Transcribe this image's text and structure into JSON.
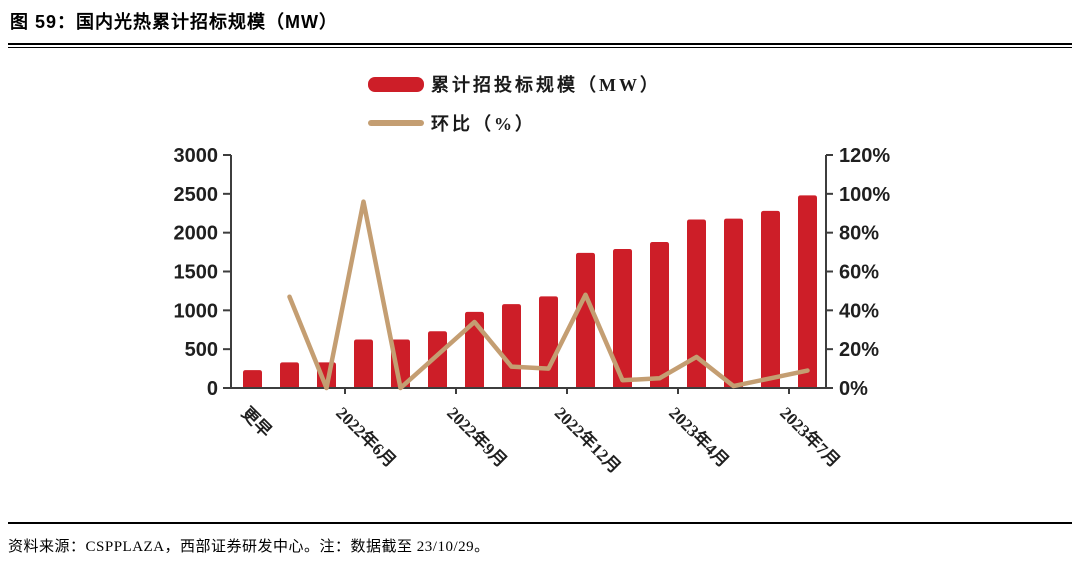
{
  "figure": {
    "title": "图 59：国内光热累计招标规模（MW）",
    "source_note": "资料来源：CSPPLAZA，西部证券研发中心。注：数据截至 23/10/29。"
  },
  "legend": [
    {
      "label": "累计招投标规模（MW）",
      "type": "bar",
      "color": "#CD1E28"
    },
    {
      "label": "环比（%）",
      "type": "line",
      "color": "#C49E72"
    }
  ],
  "chart_data": {
    "type": "bar",
    "subtype": "bar+line combo, dual axis",
    "title": "国内光热累计招标规模（MW）",
    "categories": [
      "更早",
      "",
      "",
      "2022年6月",
      "",
      "",
      "2022年9月",
      "",
      "",
      "2022年12月",
      "",
      "",
      "2023年4月",
      "",
      "",
      "2023年7月"
    ],
    "series": [
      {
        "name": "累计招投标规模（MW）",
        "type": "bar",
        "axis": "left",
        "color": "#CD1E28",
        "values": [
          230,
          330,
          330,
          625,
          625,
          730,
          980,
          1080,
          1180,
          1740,
          1790,
          1880,
          2170,
          2180,
          2280,
          2480
        ]
      },
      {
        "name": "环比（%）",
        "type": "line",
        "axis": "right",
        "color": "#C49E72",
        "values": [
          null,
          47,
          0,
          96,
          0,
          17,
          34,
          11,
          10,
          48,
          4,
          5,
          16,
          1,
          5,
          9
        ]
      }
    ],
    "left_axis": {
      "min": 0,
      "max": 3000,
      "step": 500,
      "ticks": [
        "0",
        "500",
        "1000",
        "1500",
        "2000",
        "2500",
        "3000"
      ]
    },
    "right_axis": {
      "min": 0,
      "max": 120,
      "step": 20,
      "ticks": [
        "0%",
        "20%",
        "40%",
        "60%",
        "80%",
        "100%",
        "120%"
      ]
    },
    "grid": false,
    "legend_position": "top-center",
    "axis_color": "#3d3d3d"
  }
}
